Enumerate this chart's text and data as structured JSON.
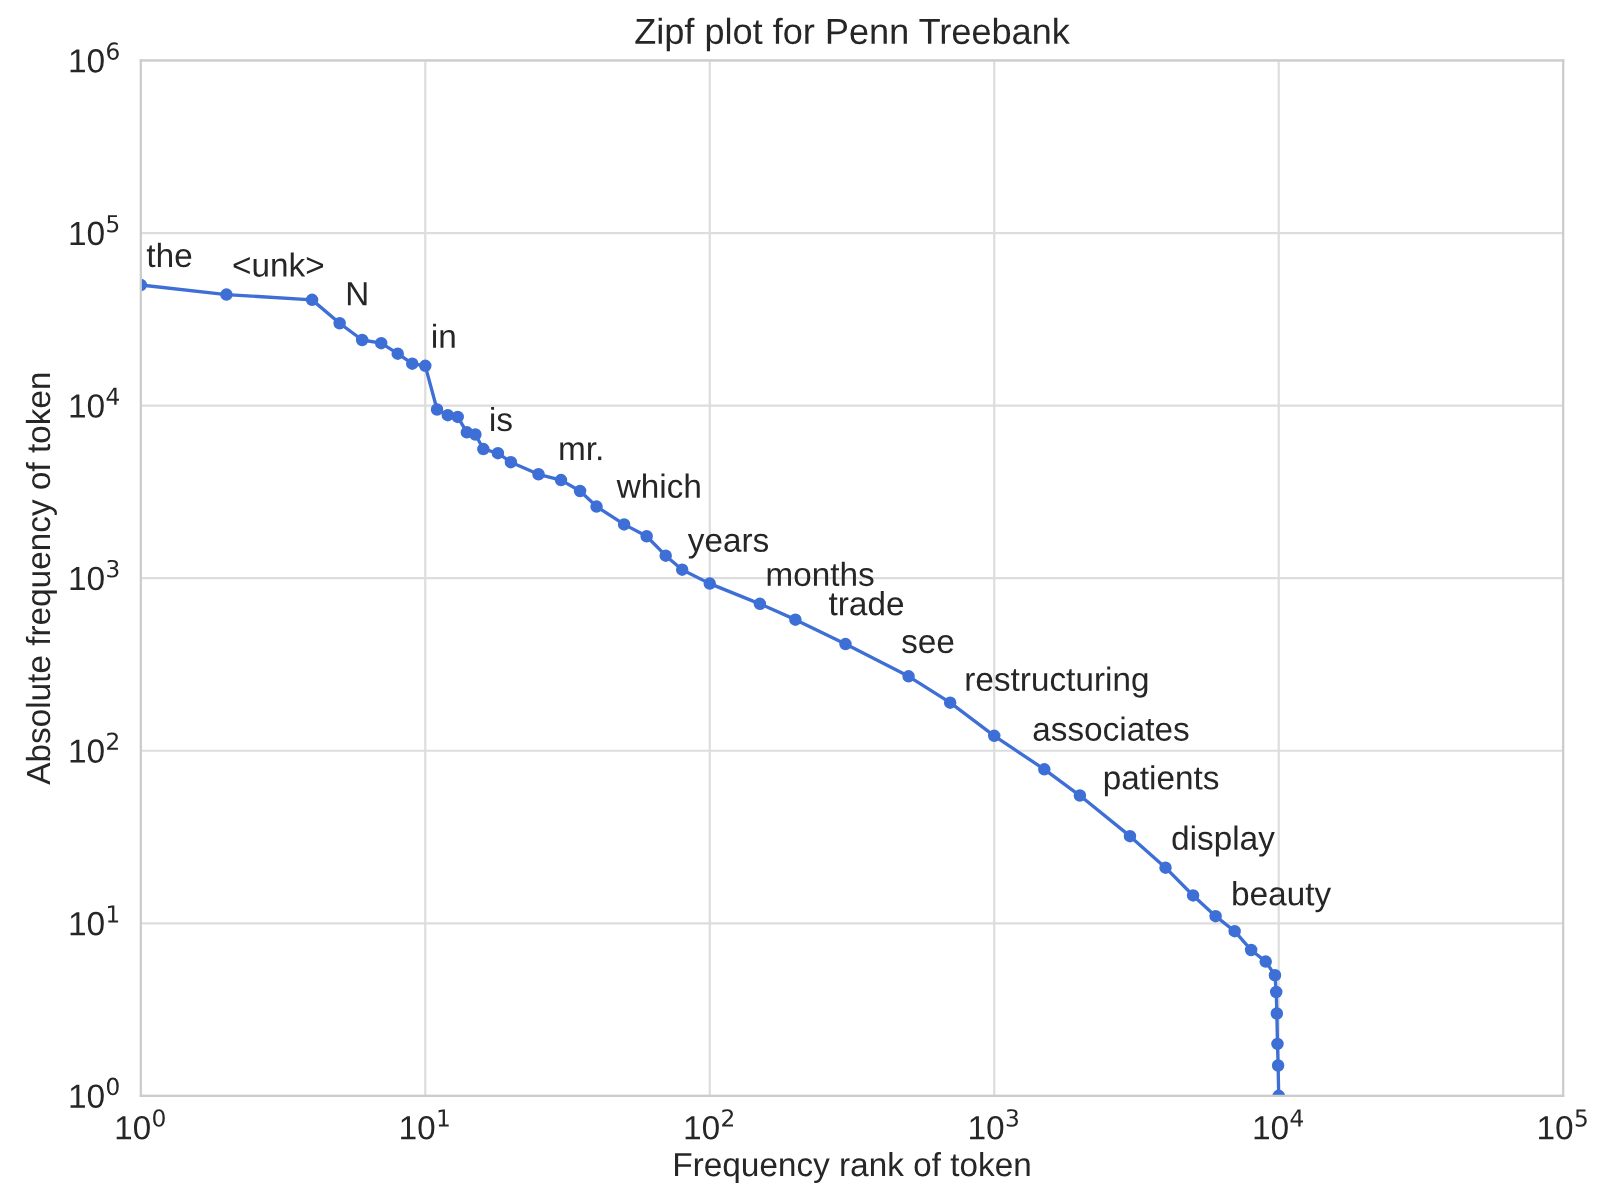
{
  "chart_data": {
    "type": "line",
    "title": "Zipf plot for Penn Treebank",
    "xlabel": "Frequency rank of token",
    "ylabel": "Absolute frequency of token",
    "log": "xy",
    "grid": true,
    "marker": "circle",
    "line_style": "solid",
    "xlim": [
      1,
      100000
    ],
    "ylim": [
      1,
      1000000
    ],
    "xticks": [
      {
        "value": 1,
        "label": "10$^{0}$"
      },
      {
        "value": 10,
        "label": "10$^{1}$"
      },
      {
        "value": 100,
        "label": "10$^{2}$"
      },
      {
        "value": 1000,
        "label": "10$^{3}$"
      },
      {
        "value": 10000,
        "label": "10$^{4}$"
      },
      {
        "value": 100000,
        "label": "10$^{5}$"
      }
    ],
    "yticks": [
      {
        "value": 1,
        "label": "10$^{0}$"
      },
      {
        "value": 10,
        "label": "10$^{1}$"
      },
      {
        "value": 100,
        "label": "10$^{2}$"
      },
      {
        "value": 1000,
        "label": "10$^{3}$"
      },
      {
        "value": 10000,
        "label": "10$^{4}$"
      },
      {
        "value": 100000,
        "label": "10$^{5}$"
      },
      {
        "value": 1000000,
        "label": "10$^{6}$"
      }
    ],
    "series": [
      {
        "color": "#3d6fd6",
        "x": [
          1,
          2,
          4,
          5,
          6,
          7,
          8,
          9,
          10,
          11,
          12,
          13,
          14,
          15,
          16,
          18,
          20,
          25,
          30,
          35,
          40,
          50,
          60,
          70,
          80,
          100,
          150,
          200,
          300,
          500,
          700,
          1000,
          1500,
          2000,
          3000,
          4000,
          5000,
          6000,
          7000,
          8000,
          9000,
          9700,
          9800,
          9850,
          9900,
          9950,
          10000
        ],
        "values": [
          50000,
          44000,
          41000,
          30000,
          24000,
          23000,
          20000,
          17500,
          17000,
          9500,
          8800,
          8600,
          7000,
          6800,
          5600,
          5300,
          4700,
          4000,
          3700,
          3200,
          2600,
          2050,
          1750,
          1350,
          1120,
          930,
          710,
          575,
          415,
          270,
          190,
          122,
          78,
          55,
          32,
          21,
          14.5,
          11,
          9,
          7,
          6,
          5,
          4,
          3,
          2,
          1.5,
          1
        ]
      }
    ],
    "annotations": [
      {
        "text": "the",
        "x": 1,
        "y": 50000
      },
      {
        "text": "<unk>",
        "x": 2,
        "y": 44000
      },
      {
        "text": "N",
        "x": 5,
        "y": 30000
      },
      {
        "text": "in",
        "x": 10,
        "y": 17000
      },
      {
        "text": "is",
        "x": 16,
        "y": 5600
      },
      {
        "text": "mr.",
        "x": 28,
        "y": 3800
      },
      {
        "text": "which",
        "x": 45,
        "y": 2300
      },
      {
        "text": "years",
        "x": 80,
        "y": 1120
      },
      {
        "text": "months",
        "x": 150,
        "y": 710
      },
      {
        "text": "trade",
        "x": 250,
        "y": 480
      },
      {
        "text": "see",
        "x": 450,
        "y": 290
      },
      {
        "text": "restructuring",
        "x": 750,
        "y": 175
      },
      {
        "text": "associates",
        "x": 1300,
        "y": 90
      },
      {
        "text": "patients",
        "x": 2300,
        "y": 47
      },
      {
        "text": "display",
        "x": 4000,
        "y": 21
      },
      {
        "text": "beauty",
        "x": 6500,
        "y": 10
      }
    ]
  }
}
